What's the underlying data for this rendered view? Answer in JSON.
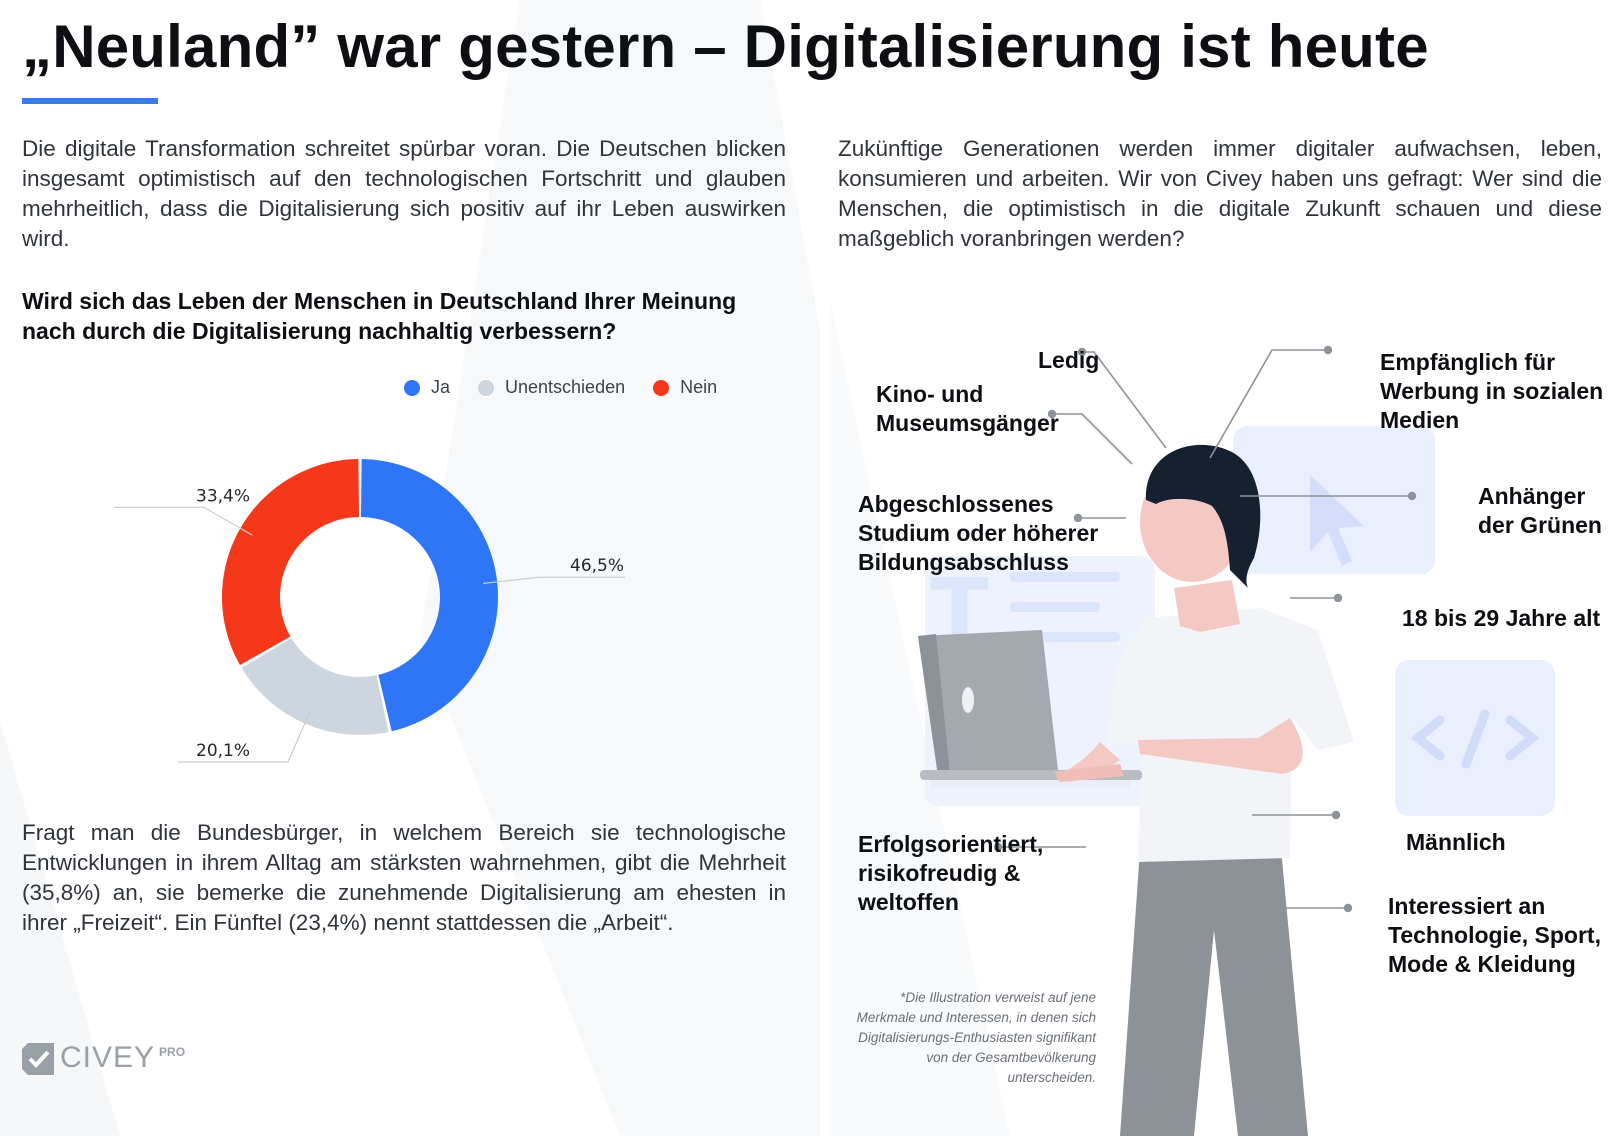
{
  "header": {
    "title": "„Neuland” war gestern – Digitalisierung ist heute"
  },
  "intro_left": "Die digitale Transformation schreitet spürbar voran. Die Deutschen blicken insgesamt optimistisch auf den technologischen Fortschritt und glauben mehrheitlich, dass die Digitalisierung sich positiv auf ihr Leben auswirken wird.",
  "intro_right": "Zukünftige Generationen werden immer digitaler aufwachsen, leben, konsumieren und arbeiten. Wir von Civey haben uns gefragt: Wer sind die Menschen, die optimistisch in die digitale Zukunft schauen und diese maßgeblich voranbringen werden?",
  "chart_data": {
    "type": "pie",
    "title": "Wird sich das Leben der Menschen in Deutschland Ihrer Meinung nach durch die Digitalisierung nachhaltig verbessern?",
    "legend_position": "top",
    "categories": [
      "Ja",
      "Unentschieden",
      "Nein"
    ],
    "values": [
      46.5,
      20.1,
      33.4
    ],
    "labels": [
      "46,5%",
      "20,1%",
      "33,4%"
    ],
    "colors": [
      "#2f76f6",
      "#cdd5de",
      "#f5381a"
    ],
    "donut": true
  },
  "outro_left": "Fragt man die Bundesbürger, in welchem Bereich sie technologische Entwicklungen in ihrem Alltag am stärksten wahrnehmen, gibt die Mehrheit (35,8%) an, sie bemerke die zunehmende Digitalisierung am ehesten in ihrer „Freizeit“. Ein Fünftel (23,4%) nennt stattdessen die „Arbeit“.",
  "brand": {
    "name": "CIVEY",
    "suffix": "PRO"
  },
  "attributes": {
    "ledig": "Ledig",
    "kino": "Kino- und Museumsgänger",
    "werbung": "Empfänglich für Werbung in sozialen Medien",
    "studium": "Abgeschlossenes Studium oder höherer Bildungsabschluss",
    "gruene": "Anhänger der Grünen",
    "alter": "18 bis 29 Jahre alt",
    "maennlich": "Männlich",
    "erfolg": "Erfolgsorientiert, risikofreudig & weltoffen",
    "interessen": "Interessiert an Technologie, Sport, Mode & Kleidung"
  },
  "footnote": "*Die Illustration verweist auf jene Merkmale und Interessen, in denen sich Digitalisierungs-Enthusiasten signifikant von der Gesamtbevölkerung unterscheiden.",
  "colors": {
    "accent": "#3a7bf2",
    "connector": "#8e939a"
  },
  "icons": [
    "civey-logo-icon",
    "person-illustration",
    "laptop-icon",
    "cursor-icon",
    "code-icon",
    "document-icon"
  ]
}
